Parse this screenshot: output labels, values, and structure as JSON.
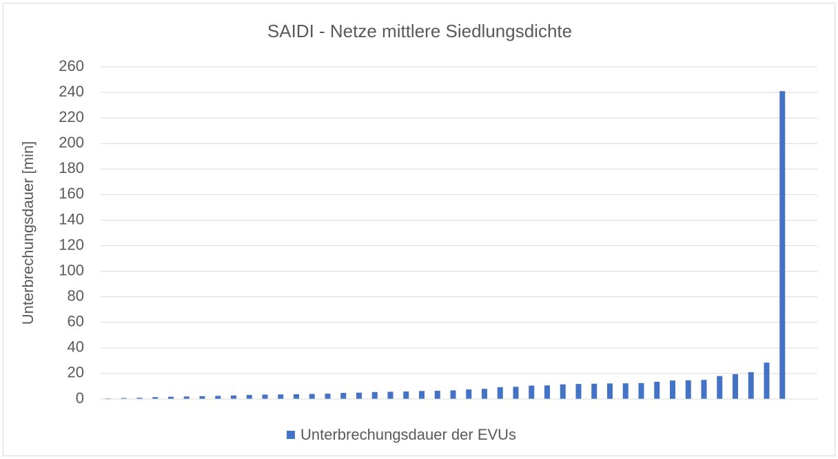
{
  "chart_data": {
    "type": "bar",
    "title": "SAIDI - Netze mittlere Siedlungsdichte",
    "y_label": "Unterbrechungsdauer [min]",
    "categories": [
      null,
      null,
      null,
      null,
      null,
      null,
      null,
      null,
      null,
      null,
      null,
      null,
      null,
      null,
      null,
      null,
      null,
      null,
      null,
      null,
      null,
      null,
      null,
      null,
      null,
      null,
      null,
      null,
      null,
      null,
      null,
      null,
      null,
      null,
      null,
      null,
      null,
      null,
      null,
      null,
      null,
      null,
      null,
      null
    ],
    "series": [
      {
        "name": "Unterbrechungsdauer der EVUs",
        "color": "#4472c4",
        "values": [
          0.5,
          0.8,
          1,
          1.5,
          1.8,
          2,
          2.3,
          2.5,
          2.8,
          3.2,
          3.5,
          3.6,
          3.8,
          4,
          4.2,
          4.8,
          5,
          5.5,
          5.7,
          5.9,
          6.3,
          6.5,
          6.8,
          7.5,
          8,
          9.3,
          9.6,
          10.5,
          10.7,
          11.5,
          11.8,
          12,
          12.2,
          12.3,
          12.5,
          13.5,
          14.5,
          14.7,
          15,
          18,
          19.5,
          21,
          28.5,
          241
        ]
      }
    ],
    "ylim": [
      0,
      260
    ],
    "yticks": [
      0,
      20,
      40,
      60,
      80,
      100,
      120,
      140,
      160,
      180,
      200,
      220,
      240,
      260
    ],
    "grid": true,
    "legend": "bottom"
  }
}
